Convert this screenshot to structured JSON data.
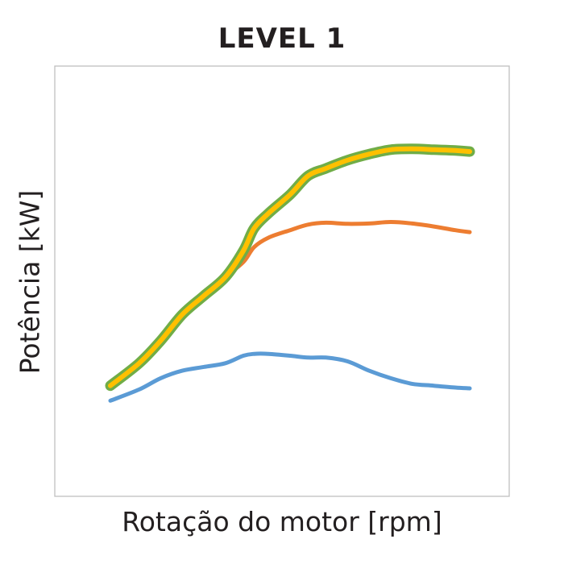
{
  "chart_data": {
    "type": "line",
    "title": "LEVEL 1",
    "xlabel": "Rotação do motor [rpm]",
    "ylabel": "Potência [kW]",
    "xlim": [
      0,
      100
    ],
    "ylim": [
      0,
      100
    ],
    "grid": false,
    "legend": "none",
    "x": [
      0,
      8,
      14,
      20,
      26,
      32,
      37,
      40,
      44,
      50,
      55,
      60,
      66,
      72,
      78,
      84,
      90,
      96,
      100
    ],
    "series": [
      {
        "color": "#5b9bd5",
        "values": [
          18,
          21,
          24,
          26,
          27,
          28,
          30,
          30.5,
          30.5,
          30,
          29.5,
          29.5,
          28.5,
          26,
          24,
          22.5,
          22,
          21.5,
          21.3
        ]
      },
      {
        "color": "#ed7d31",
        "values": [
          22,
          28,
          34,
          40,
          46,
          51,
          55,
          59,
          61.5,
          63.5,
          65,
          65.5,
          65.2,
          65.3,
          65.7,
          65.3,
          64.5,
          63.5,
          63
        ]
      },
      {
        "color": "#70ad47",
        "values": [
          22,
          28,
          34,
          41,
          46,
          51,
          58,
          64,
          68,
          73,
          78,
          80,
          82.2,
          83.8,
          85,
          85.2,
          85,
          84.8,
          84.5
        ]
      },
      {
        "color": "#ffc000",
        "values": [
          22,
          28,
          34,
          41,
          46,
          51,
          58,
          64,
          68,
          73,
          78,
          80,
          82.2,
          83.8,
          85,
          85.2,
          85,
          84.8,
          84.5
        ]
      }
    ]
  }
}
